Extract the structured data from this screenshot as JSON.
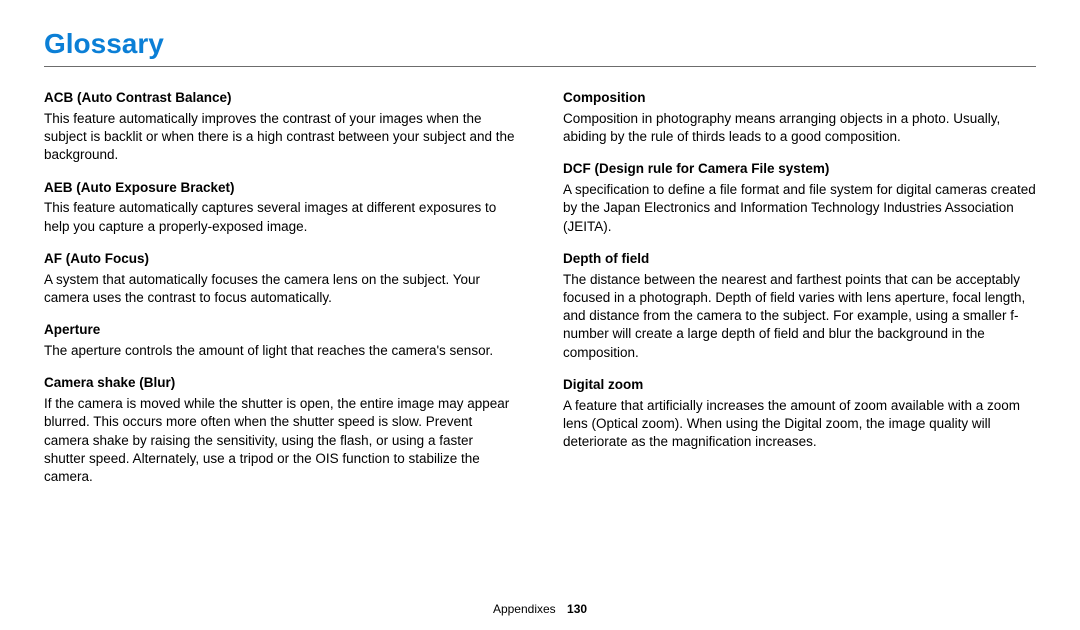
{
  "page": {
    "title": "Glossary",
    "footer_label": "Appendixes",
    "footer_page": "130",
    "title_color": "#0b7fd6",
    "rule_color": "#6c6c6c",
    "text_color": "#000000",
    "background_color": "#ffffff"
  },
  "left": {
    "items": [
      {
        "title": "ACB (Auto Contrast Balance)",
        "body": "This feature automatically improves the contrast of your images when the subject is backlit or when there is a high contrast between your subject and the background."
      },
      {
        "title": "AEB (Auto Exposure Bracket)",
        "body": "This feature automatically captures several images at different exposures to help you capture a properly-exposed image."
      },
      {
        "title": "AF (Auto Focus)",
        "body": "A system that automatically focuses the camera lens on the subject. Your camera uses the contrast to focus automatically."
      },
      {
        "title": "Aperture",
        "body": "The aperture controls the amount of light that reaches the camera's sensor."
      },
      {
        "title": "Camera shake (Blur)",
        "body": "If the camera is moved while the shutter is open, the entire image may appear blurred. This occurs more often when the shutter speed is slow. Prevent camera shake by raising the sensitivity, using the flash, or using a faster shutter speed. Alternately, use a tripod or the OIS function to stabilize the camera."
      }
    ]
  },
  "right": {
    "items": [
      {
        "title": "Composition",
        "body": "Composition in photography means arranging objects in a photo. Usually, abiding by the rule of thirds leads to a good composition."
      },
      {
        "title": "DCF (Design rule for Camera File system)",
        "body": "A specification to define a file format and file system for digital cameras created by the Japan Electronics and Information Technology Industries Association (JEITA)."
      },
      {
        "title": "Depth of field",
        "body": "The distance between the nearest and farthest points that can be acceptably focused in a photograph. Depth of field varies with lens aperture, focal length, and distance from the camera to the subject. For example, using a smaller f-number will create a large depth of field and blur the background in the composition."
      },
      {
        "title": "Digital zoom",
        "body": "A feature that artificially increases the amount of zoom available with a zoom lens (Optical zoom). When using the Digital zoom, the image quality will deteriorate as the magnification increases."
      }
    ]
  }
}
